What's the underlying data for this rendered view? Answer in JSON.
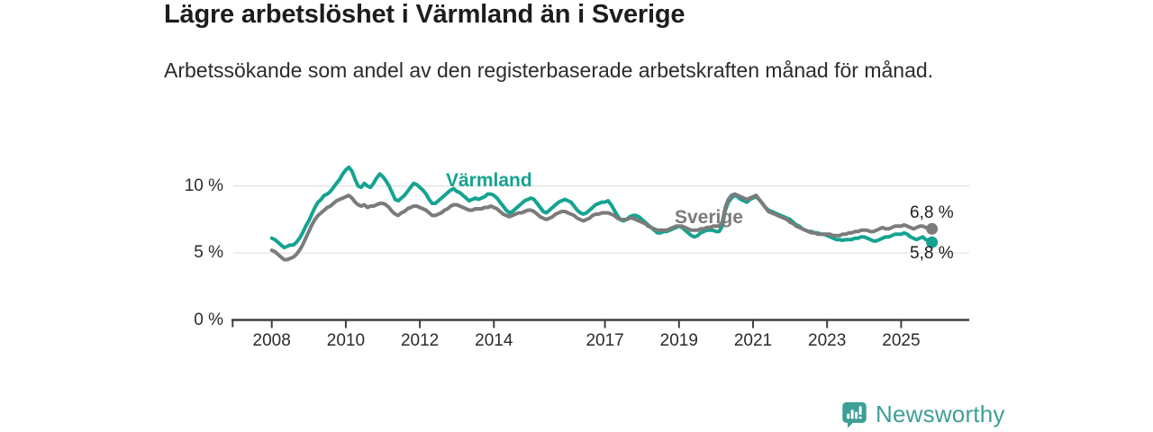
{
  "header": {
    "title": "Lägre arbetslöshet i Värmland än i Sverige",
    "subtitle": "Arbetssökande som andel av den registerbaserade arbetskraften månad för månad."
  },
  "footer": {
    "brand": "Newsworthy",
    "logo_icon": "newsworthy-logo-icon",
    "brand_color": "#3d9f95"
  },
  "chart_data": {
    "type": "line",
    "title": "Lägre arbetslöshet i Värmland än i Sverige",
    "subtitle": "Arbetssökande som andel av den registerbaserade arbetskraften månad för månad.",
    "unit": "%",
    "frequency": "monthly",
    "x_start": {
      "year": 2008,
      "month": 1
    },
    "x_end": {
      "year": 2025,
      "month": 11
    },
    "ylim": [
      0,
      12.3
    ],
    "grid": "horizontal",
    "legend_position": "inline-labels",
    "colors": {
      "grid": "#e3e3e3",
      "axis": "#3f3f3f",
      "tick_text": "#2b2b2b",
      "annotation_text": "#1d1d1d"
    },
    "y_ticks": [
      {
        "value": 0,
        "label": "0 %"
      },
      {
        "value": 5,
        "label": "5 %"
      },
      {
        "value": 10,
        "label": "10 %"
      }
    ],
    "x_ticks": [
      {
        "year": 2008,
        "label": "2008"
      },
      {
        "year": 2010,
        "label": "2010"
      },
      {
        "year": 2012,
        "label": "2012"
      },
      {
        "year": 2014,
        "label": "2014"
      },
      {
        "year": 2017,
        "label": "2017"
      },
      {
        "year": 2019,
        "label": "2019"
      },
      {
        "year": 2021,
        "label": "2021"
      },
      {
        "year": 2023,
        "label": "2023"
      },
      {
        "year": 2025,
        "label": "2025"
      }
    ],
    "series": [
      {
        "name": "Värmland",
        "color": "#15a391",
        "end_value": 5.8,
        "end_label": "5,8 %",
        "values": [
          6.1,
          6.0,
          5.8,
          5.6,
          5.4,
          5.5,
          5.6,
          5.6,
          5.8,
          6.1,
          6.5,
          7.0,
          7.4,
          7.9,
          8.4,
          8.8,
          9.0,
          9.3,
          9.4,
          9.6,
          9.9,
          10.2,
          10.5,
          10.9,
          11.2,
          11.4,
          11.1,
          10.5,
          10.0,
          9.9,
          10.2,
          10.0,
          9.9,
          10.2,
          10.6,
          10.9,
          10.7,
          10.4,
          10.0,
          9.5,
          9.0,
          8.9,
          9.1,
          9.3,
          9.6,
          9.9,
          10.2,
          10.1,
          9.9,
          9.7,
          9.4,
          9.0,
          8.7,
          8.7,
          8.9,
          9.1,
          9.3,
          9.5,
          9.7,
          9.8,
          9.6,
          9.5,
          9.3,
          9.1,
          8.9,
          9.0,
          9.1,
          9.0,
          9.1,
          9.2,
          9.4,
          9.4,
          9.3,
          9.1,
          8.8,
          8.5,
          8.2,
          8.0,
          8.1,
          8.3,
          8.5,
          8.7,
          8.9,
          9.0,
          9.1,
          9.0,
          8.7,
          8.4,
          8.1,
          8.0,
          8.2,
          8.4,
          8.6,
          8.8,
          8.9,
          9.0,
          8.9,
          8.8,
          8.5,
          8.2,
          8.0,
          7.9,
          8.0,
          8.2,
          8.4,
          8.6,
          8.7,
          8.8,
          8.8,
          8.9,
          8.6,
          8.2,
          7.8,
          7.5,
          7.4,
          7.5,
          7.7,
          7.8,
          7.8,
          7.7,
          7.5,
          7.3,
          7.1,
          6.9,
          6.7,
          6.5,
          6.5,
          6.6,
          6.6,
          6.7,
          6.8,
          6.9,
          7.0,
          6.9,
          6.7,
          6.5,
          6.3,
          6.2,
          6.3,
          6.5,
          6.6,
          6.7,
          6.7,
          6.7,
          6.6,
          6.6,
          7.0,
          8.2,
          8.8,
          9.1,
          9.3,
          9.2,
          9.0,
          8.9,
          8.8,
          9.0,
          9.1,
          9.2,
          9.0,
          8.7,
          8.4,
          8.2,
          8.1,
          8.0,
          7.9,
          7.8,
          7.7,
          7.6,
          7.5,
          7.3,
          7.1,
          7.0,
          6.8,
          6.7,
          6.6,
          6.6,
          6.5,
          6.5,
          6.4,
          6.4,
          6.3,
          6.2,
          6.1,
          6.0,
          6.0,
          5.95,
          6.0,
          6.0,
          6.0,
          6.1,
          6.1,
          6.2,
          6.2,
          6.1,
          6.0,
          5.9,
          5.9,
          6.0,
          6.1,
          6.2,
          6.2,
          6.3,
          6.4,
          6.4,
          6.4,
          6.5,
          6.4,
          6.2,
          6.1,
          6.0,
          6.1,
          6.2,
          6.0,
          5.9,
          5.8
        ]
      },
      {
        "name": "Sverige",
        "color": "#7b7b7b",
        "end_value": 6.8,
        "end_label": "6,8 %",
        "values": [
          5.2,
          5.1,
          4.9,
          4.7,
          4.5,
          4.5,
          4.6,
          4.7,
          4.9,
          5.2,
          5.6,
          6.1,
          6.6,
          7.1,
          7.5,
          7.8,
          8.0,
          8.2,
          8.4,
          8.5,
          8.7,
          8.9,
          9.0,
          9.1,
          9.2,
          9.3,
          9.1,
          8.8,
          8.6,
          8.5,
          8.6,
          8.4,
          8.5,
          8.5,
          8.6,
          8.7,
          8.7,
          8.6,
          8.4,
          8.1,
          7.9,
          7.8,
          8.0,
          8.1,
          8.3,
          8.4,
          8.5,
          8.5,
          8.4,
          8.3,
          8.2,
          8.0,
          7.8,
          7.8,
          7.9,
          8.0,
          8.2,
          8.3,
          8.5,
          8.6,
          8.6,
          8.5,
          8.4,
          8.3,
          8.2,
          8.2,
          8.3,
          8.3,
          8.3,
          8.4,
          8.4,
          8.5,
          8.4,
          8.3,
          8.1,
          7.9,
          7.8,
          7.7,
          7.8,
          7.9,
          8.0,
          8.0,
          8.1,
          8.2,
          8.2,
          8.1,
          7.9,
          7.7,
          7.6,
          7.5,
          7.6,
          7.7,
          7.9,
          8.0,
          8.1,
          8.1,
          8.0,
          7.9,
          7.8,
          7.6,
          7.5,
          7.4,
          7.5,
          7.6,
          7.8,
          7.9,
          7.9,
          8.0,
          8.0,
          8.0,
          7.9,
          7.8,
          7.6,
          7.5,
          7.5,
          7.5,
          7.6,
          7.6,
          7.5,
          7.4,
          7.3,
          7.2,
          7.0,
          6.9,
          6.8,
          6.7,
          6.7,
          6.7,
          6.7,
          6.8,
          6.9,
          7.0,
          7.0,
          7.0,
          6.9,
          6.8,
          6.7,
          6.7,
          6.7,
          6.8,
          6.8,
          6.9,
          6.9,
          7.0,
          7.0,
          7.0,
          7.3,
          8.4,
          9.0,
          9.3,
          9.4,
          9.3,
          9.2,
          9.1,
          9.0,
          9.1,
          9.2,
          9.3,
          9.0,
          8.7,
          8.4,
          8.1,
          8.0,
          7.9,
          7.8,
          7.7,
          7.6,
          7.5,
          7.3,
          7.2,
          7.0,
          6.9,
          6.8,
          6.7,
          6.6,
          6.5,
          6.5,
          6.4,
          6.4,
          6.4,
          6.4,
          6.4,
          6.3,
          6.3,
          6.3,
          6.4,
          6.4,
          6.5,
          6.5,
          6.6,
          6.6,
          6.7,
          6.7,
          6.7,
          6.6,
          6.6,
          6.7,
          6.8,
          6.9,
          6.8,
          6.8,
          6.9,
          7.0,
          7.0,
          7.0,
          7.1,
          7.0,
          6.9,
          6.8,
          6.9,
          7.0,
          7.0,
          6.9,
          6.8,
          6.8
        ]
      }
    ]
  }
}
